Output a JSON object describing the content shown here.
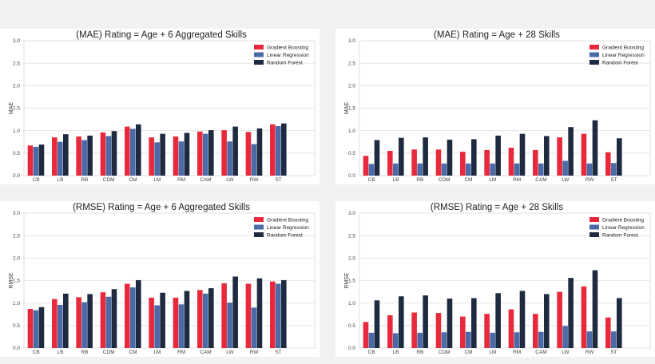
{
  "chart_data": [
    {
      "type": "bar",
      "title": "(MAE) Rating = Age + 6 Aggregated Skills",
      "ylabel": "MAE",
      "ylim": [
        0,
        3.0
      ],
      "yticks": [
        "0.0",
        "0.5",
        "1.0",
        "1.5",
        "2.0",
        "2.5",
        "3.0"
      ],
      "categories": [
        "CB",
        "LB",
        "RB",
        "CDM",
        "CM",
        "LM",
        "RM",
        "CAM",
        "LW",
        "RW",
        "ST"
      ],
      "legend": "top-right",
      "series": [
        {
          "name": "Gradient Boosting",
          "color": "#e8293b",
          "values": [
            0.67,
            0.85,
            0.87,
            0.96,
            1.09,
            0.85,
            0.87,
            0.98,
            1.01,
            0.97,
            1.14
          ]
        },
        {
          "name": "Linear Regression",
          "color": "#4a6aa8",
          "values": [
            0.64,
            0.75,
            0.79,
            0.88,
            1.04,
            0.74,
            0.76,
            0.93,
            0.76,
            0.7,
            1.1
          ]
        },
        {
          "name": "Random Forest",
          "color": "#1e2a3f",
          "values": [
            0.69,
            0.92,
            0.89,
            0.99,
            1.14,
            0.93,
            0.95,
            1.01,
            1.09,
            1.05,
            1.16
          ]
        }
      ]
    },
    {
      "type": "bar",
      "title": "(MAE) Rating = Age + 28 Skills",
      "ylabel": "MAE",
      "ylim": [
        0,
        3.0
      ],
      "yticks": [
        "0.0",
        "0.5",
        "1.0",
        "1.5",
        "2.0",
        "2.5",
        "3.0"
      ],
      "categories": [
        "CB",
        "LB",
        "RB",
        "CDM",
        "CM",
        "LM",
        "RM",
        "CAM",
        "LW",
        "RW",
        "ST"
      ],
      "legend": "top-right",
      "series": [
        {
          "name": "Gradient Boosting",
          "color": "#e8293b",
          "values": [
            0.44,
            0.55,
            0.58,
            0.58,
            0.53,
            0.57,
            0.62,
            0.57,
            0.85,
            0.93,
            0.52
          ]
        },
        {
          "name": "Linear Regression",
          "color": "#4a6aa8",
          "values": [
            0.26,
            0.27,
            0.27,
            0.27,
            0.27,
            0.27,
            0.27,
            0.27,
            0.33,
            0.27,
            0.28
          ]
        },
        {
          "name": "Random Forest",
          "color": "#1e2a3f",
          "values": [
            0.79,
            0.84,
            0.85,
            0.8,
            0.81,
            0.89,
            0.93,
            0.88,
            1.08,
            1.23,
            0.83
          ]
        }
      ]
    },
    {
      "type": "bar",
      "title": "(RMSE) Rating = Age + 6 Aggregated Skills",
      "ylabel": "RMSE",
      "ylim": [
        0,
        3.0
      ],
      "yticks": [
        "0.0",
        "0.5",
        "1.0",
        "1.5",
        "2.0",
        "2.5",
        "3.0"
      ],
      "categories": [
        "CB",
        "LB",
        "RB",
        "CDM",
        "CM",
        "LM",
        "RM",
        "CAM",
        "LW",
        "RW",
        "ST"
      ],
      "legend": "top-right",
      "series": [
        {
          "name": "Gradient Boosting",
          "color": "#e8293b",
          "values": [
            0.87,
            1.09,
            1.13,
            1.24,
            1.43,
            1.12,
            1.12,
            1.29,
            1.44,
            1.43,
            1.48
          ]
        },
        {
          "name": "Linear Regression",
          "color": "#4a6aa8",
          "values": [
            0.84,
            0.96,
            1.02,
            1.14,
            1.35,
            0.95,
            0.97,
            1.21,
            1.01,
            0.9,
            1.43
          ]
        },
        {
          "name": "Random Forest",
          "color": "#1e2a3f",
          "values": [
            0.91,
            1.21,
            1.2,
            1.31,
            1.51,
            1.23,
            1.27,
            1.33,
            1.59,
            1.55,
            1.51
          ]
        }
      ]
    },
    {
      "type": "bar",
      "title": "(RMSE) Rating = Age + 28 Skills",
      "ylabel": "RMSE",
      "ylim": [
        0,
        3.0
      ],
      "yticks": [
        "0.0",
        "0.5",
        "1.0",
        "1.5",
        "2.0",
        "2.5",
        "3.0"
      ],
      "categories": [
        "CB",
        "LB",
        "RB",
        "CDM",
        "CM",
        "LM",
        "RM",
        "CAM",
        "LW",
        "RW",
        "ST"
      ],
      "legend": "top-right",
      "series": [
        {
          "name": "Gradient Boosting",
          "color": "#e8293b",
          "values": [
            0.58,
            0.73,
            0.79,
            0.78,
            0.7,
            0.76,
            0.86,
            0.76,
            1.25,
            1.37,
            0.68
          ]
        },
        {
          "name": "Linear Regression",
          "color": "#4a6aa8",
          "values": [
            0.34,
            0.33,
            0.34,
            0.35,
            0.36,
            0.34,
            0.35,
            0.36,
            0.49,
            0.37,
            0.37
          ]
        },
        {
          "name": "Random Forest",
          "color": "#1e2a3f",
          "values": [
            1.06,
            1.15,
            1.17,
            1.1,
            1.11,
            1.22,
            1.27,
            1.2,
            1.56,
            1.73,
            1.11
          ]
        }
      ]
    }
  ]
}
